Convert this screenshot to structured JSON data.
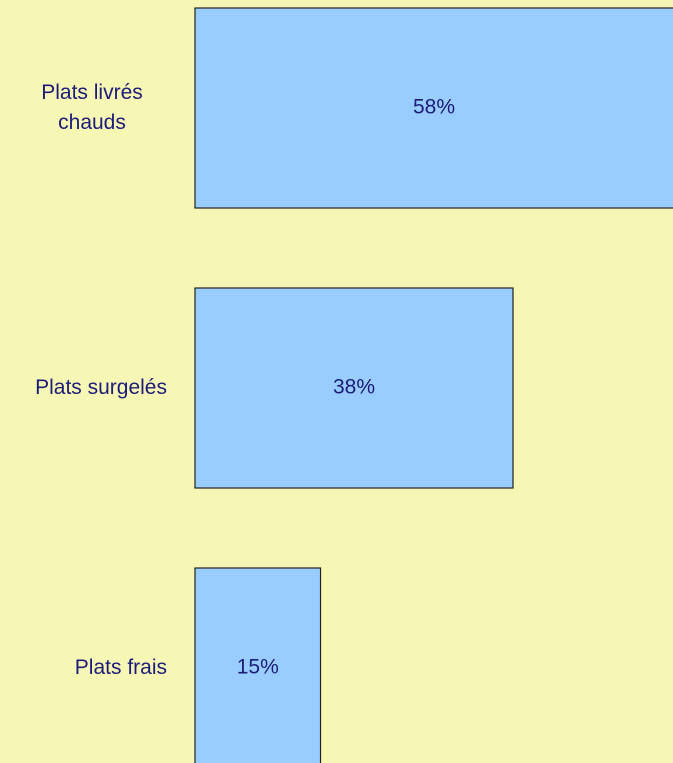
{
  "chart_data": {
    "type": "barh",
    "categories": [
      "Plats livrés chauds",
      "Plats surgelés",
      "Plats frais"
    ],
    "values": [
      58,
      38,
      15
    ],
    "value_labels": [
      "58%",
      "38%",
      "15%"
    ],
    "color": "#99ccff",
    "xlim": [
      0,
      57
    ]
  }
}
